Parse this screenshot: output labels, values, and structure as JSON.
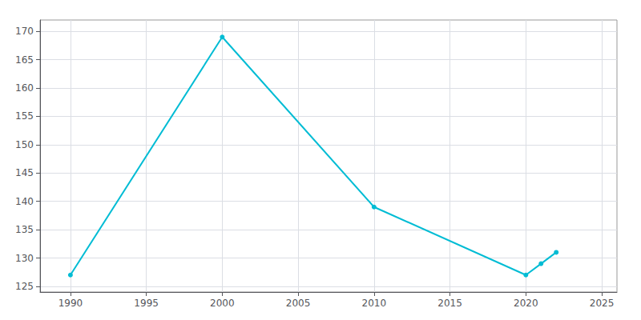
{
  "chart_data": {
    "type": "line",
    "x": [
      1990,
      2000,
      2010,
      2020,
      2021,
      2022
    ],
    "values": [
      127,
      169,
      139,
      127,
      129,
      131
    ],
    "color": "#00bcd4",
    "marker": "circle",
    "xlim": [
      1988,
      2026
    ],
    "xticks": [
      1990,
      1995,
      2000,
      2005,
      2010,
      2015,
      2020,
      2025
    ],
    "ylim": [
      124,
      172
    ],
    "yticks": [
      125,
      130,
      135,
      140,
      145,
      150,
      155,
      160,
      165,
      170
    ],
    "grid": true
  }
}
